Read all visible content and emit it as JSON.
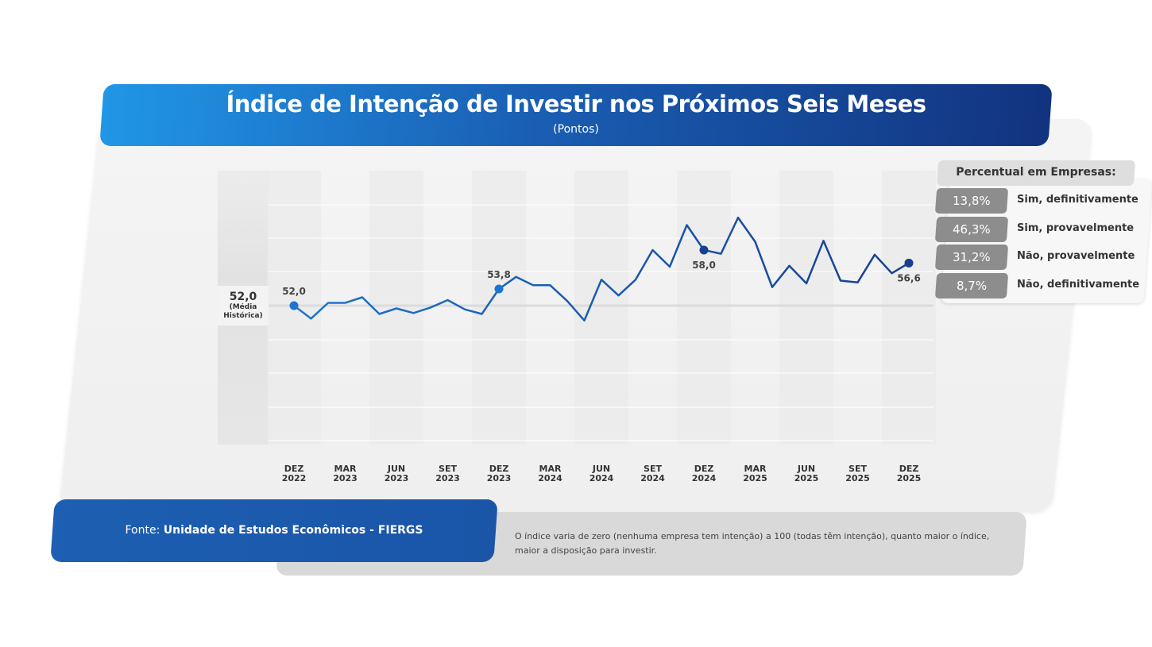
{
  "header": {
    "title": "Índice de Intenção de Investir nos Próximos Seis Meses",
    "subtitle": "(Pontos)"
  },
  "historical_mean": {
    "value": "52,0",
    "label_line1": "(Média",
    "label_line2": "Histórica)"
  },
  "legend": {
    "title": "Percentual em Empresas:",
    "items": [
      {
        "pct": "13,8%",
        "label": "Sim, definitivamente"
      },
      {
        "pct": "46,3%",
        "label": "Sim, provavelmente"
      },
      {
        "pct": "31,2%",
        "label": "Não, provavelmente"
      },
      {
        "pct": "8,7%",
        "label": "Não, definitivamente"
      }
    ]
  },
  "source": {
    "prefix": "Fonte:",
    "name": "Unidade de Estudos Econômicos - FIERGS"
  },
  "note": "O índice varia de zero (nenhuma empresa tem intenção) a 100 (todas têm intenção), quanto maior o índice, maior a disposição para investir.",
  "colors": {
    "line_start": "#1e74cf",
    "line_end": "#17408f",
    "title_start": "#2196e6",
    "title_end": "#12337f"
  },
  "chart_data": {
    "type": "line",
    "title": "Índice de Intenção de Investir nos Próximos Seis Meses",
    "ylabel": "(Pontos)",
    "grid": true,
    "reference_line": 52.0,
    "x_tick_labels": [
      [
        "DEZ",
        "2022"
      ],
      [
        "MAR",
        "2023"
      ],
      [
        "JUN",
        "2023"
      ],
      [
        "SET",
        "2023"
      ],
      [
        "DEZ",
        "2023"
      ],
      [
        "MAR",
        "2024"
      ],
      [
        "JUN",
        "2024"
      ],
      [
        "SET",
        "2024"
      ],
      [
        "DEZ",
        "2024"
      ],
      [
        "MAR",
        "2025"
      ],
      [
        "JUN",
        "2025"
      ],
      [
        "SET",
        "2025"
      ],
      [
        "DEZ",
        "2025"
      ]
    ],
    "x": [
      "Dez/22",
      "Jan/23",
      "Fev/23",
      "Mar/23",
      "Abr/23",
      "Mai/23",
      "Jun/23",
      "Jul/23",
      "Ago/23",
      "Set/23",
      "Out/23",
      "Nov/23",
      "Dez/23",
      "Jan/24",
      "Fev/24",
      "Mar/24",
      "Abr/24",
      "Mai/24",
      "Jun/24",
      "Jul/24",
      "Ago/24",
      "Set/24",
      "Out/24",
      "Nov/24",
      "Dez/24",
      "Jan/25",
      "Fev/25",
      "Mar/25",
      "Abr/25",
      "Mai/25",
      "Jun/25",
      "Jul/25",
      "Ago/25",
      "Set/25",
      "Out/25",
      "Nov/25",
      "Dez/25"
    ],
    "values": [
      52.0,
      50.6,
      52.3,
      52.3,
      52.9,
      51.1,
      51.7,
      51.2,
      51.8,
      52.6,
      51.6,
      51.1,
      53.8,
      55.1,
      54.2,
      54.2,
      52.5,
      50.4,
      54.8,
      53.1,
      54.8,
      58.0,
      56.2,
      60.7,
      58.0,
      57.6,
      61.5,
      58.9,
      54.0,
      56.3,
      54.4,
      59.0,
      54.7,
      54.5,
      57.5,
      55.5,
      56.6
    ],
    "data_labels": [
      {
        "index": 0,
        "text": "52,0"
      },
      {
        "index": 12,
        "text": "53,8"
      },
      {
        "index": 24,
        "text": "58,0"
      },
      {
        "index": 36,
        "text": "56,6"
      }
    ]
  }
}
